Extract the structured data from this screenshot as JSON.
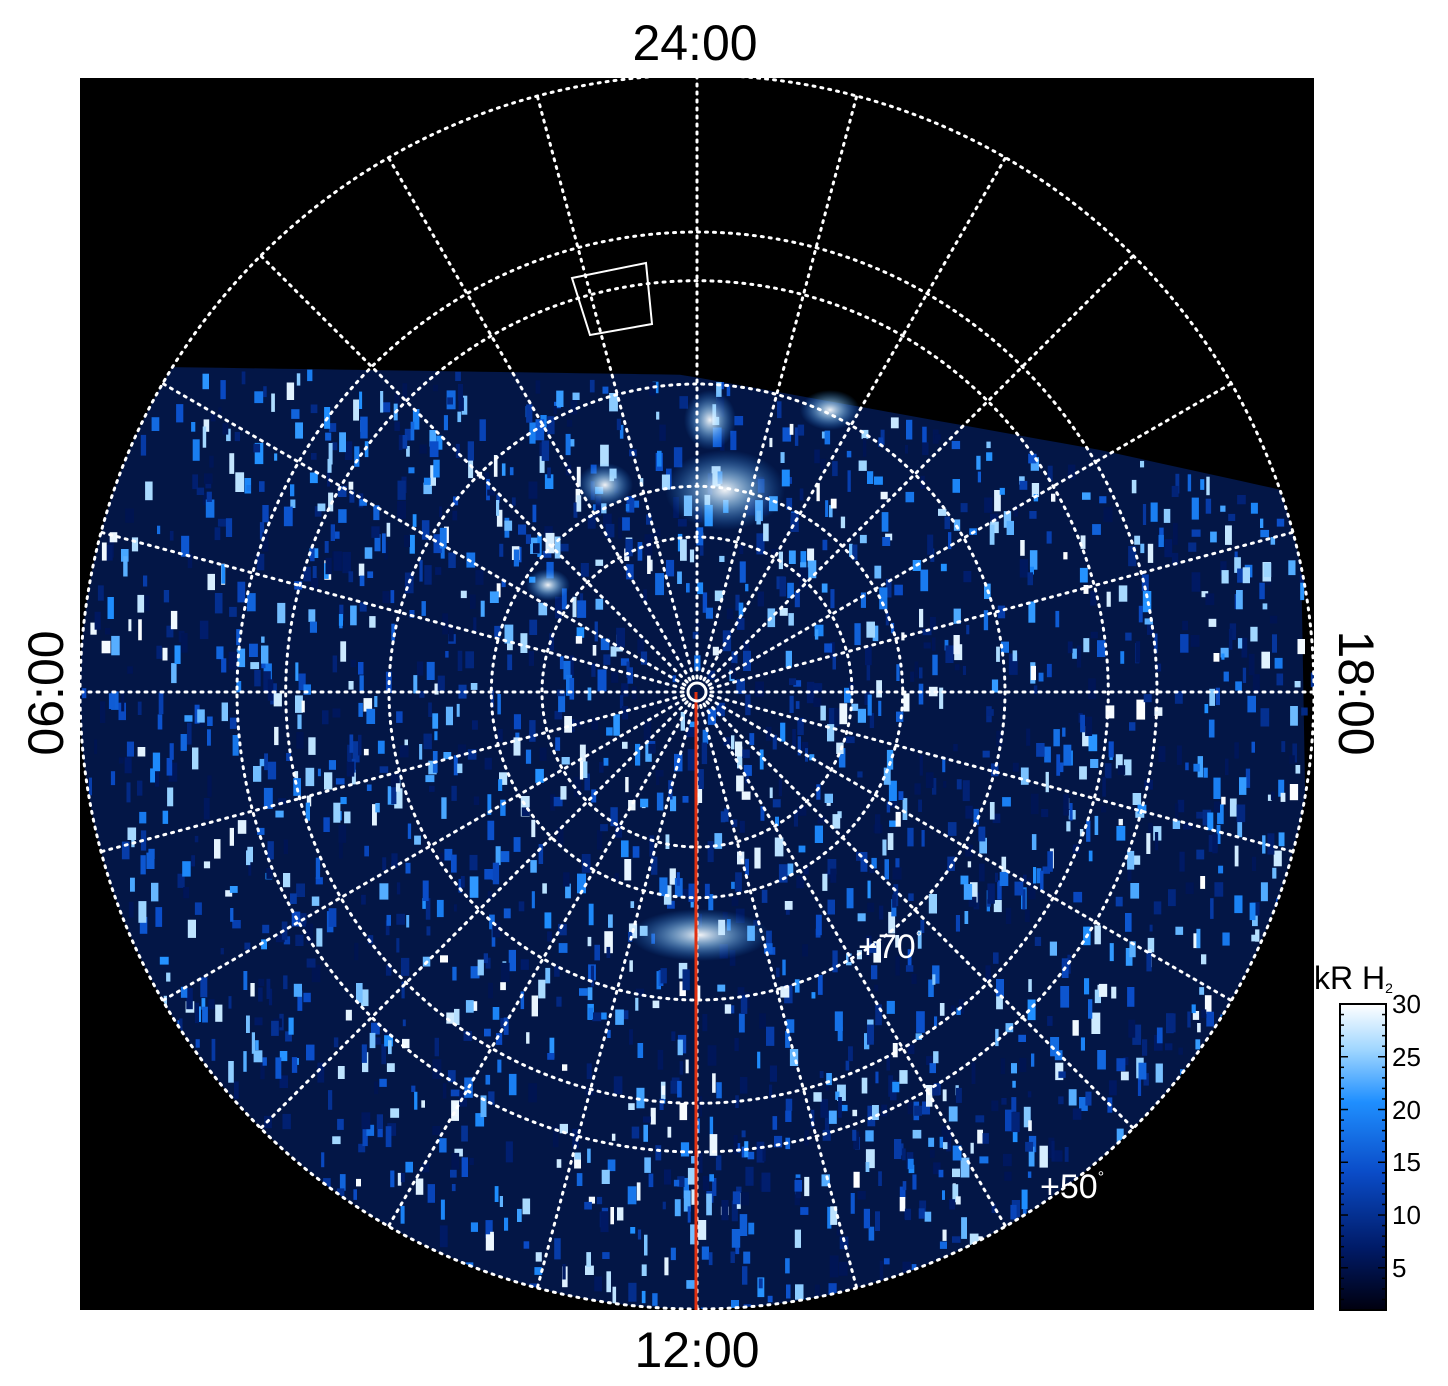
{
  "local_time_labels": {
    "top": "24:00",
    "bottom": "12:00",
    "left": "06:00",
    "right": "18:00"
  },
  "latitude_labels": [
    {
      "text": "+70",
      "degree_symbol": "°"
    },
    {
      "text": "+50",
      "degree_symbol": "°"
    }
  ],
  "colorbar": {
    "title": "kR H",
    "title_subscript": "2",
    "ticks": [
      30,
      25,
      20,
      15,
      10,
      5
    ],
    "range": [
      1,
      30
    ],
    "colormap": [
      "#00000f",
      "#001a66",
      "#0a4cc8",
      "#1f8fff",
      "#9fd6ff",
      "#ffffff"
    ]
  },
  "map": {
    "projection": "polar",
    "background_color": "#000000",
    "grid_color": "#ffffff",
    "meridian_color": "#e03010",
    "latitude_circles_deg": [
      30,
      50,
      70,
      90
    ],
    "local_time_spokes_hours": 24
  }
}
